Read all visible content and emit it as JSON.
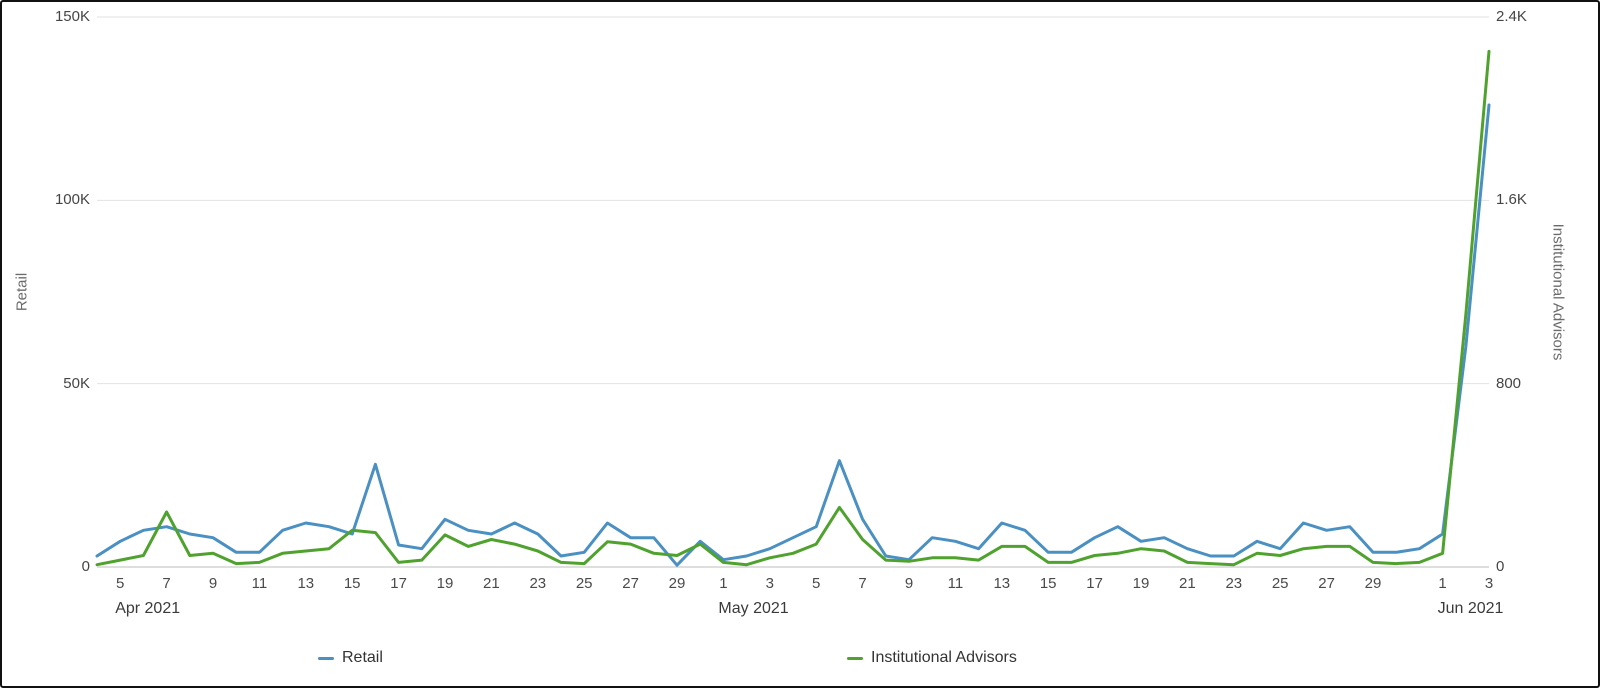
{
  "chart_data": {
    "type": "line",
    "title": "",
    "x_dates": [
      "Apr 4",
      "Apr 5",
      "Apr 6",
      "Apr 7",
      "Apr 8",
      "Apr 9",
      "Apr 10",
      "Apr 11",
      "Apr 12",
      "Apr 13",
      "Apr 14",
      "Apr 15",
      "Apr 16",
      "Apr 17",
      "Apr 18",
      "Apr 19",
      "Apr 20",
      "Apr 21",
      "Apr 22",
      "Apr 23",
      "Apr 24",
      "Apr 25",
      "Apr 26",
      "Apr 27",
      "Apr 28",
      "Apr 29",
      "Apr 30",
      "May 1",
      "May 2",
      "May 3",
      "May 4",
      "May 5",
      "May 6",
      "May 7",
      "May 8",
      "May 9",
      "May 10",
      "May 11",
      "May 12",
      "May 13",
      "May 14",
      "May 15",
      "May 16",
      "May 17",
      "May 18",
      "May 19",
      "May 20",
      "May 21",
      "May 22",
      "May 23",
      "May 24",
      "May 25",
      "May 26",
      "May 27",
      "May 28",
      "May 29",
      "May 30",
      "May 31",
      "Jun 1",
      "Jun 2",
      "Jun 3"
    ],
    "series": [
      {
        "name": "Retail",
        "color": "#4a90c2",
        "axis": "left",
        "values": [
          3000,
          7000,
          10000,
          11000,
          9000,
          8000,
          4000,
          4000,
          10000,
          12000,
          11000,
          9000,
          28000,
          6000,
          5000,
          13000,
          10000,
          9000,
          12000,
          9000,
          3000,
          4000,
          12000,
          8000,
          8000,
          500,
          7000,
          2000,
          3000,
          5000,
          8000,
          11000,
          29000,
          13000,
          3000,
          2000,
          8000,
          7000,
          5000,
          12000,
          10000,
          4000,
          4000,
          8000,
          11000,
          7000,
          8000,
          5000,
          3000,
          3000,
          7000,
          5000,
          12000,
          10000,
          11000,
          4000,
          4000,
          5000,
          9000,
          60000,
          126000
        ]
      },
      {
        "name": "Institutional Advisors",
        "color": "#4fa22e",
        "axis": "right",
        "values": [
          10,
          30,
          50,
          240,
          50,
          60,
          15,
          20,
          60,
          70,
          80,
          160,
          150,
          20,
          30,
          140,
          90,
          120,
          100,
          70,
          20,
          15,
          110,
          100,
          60,
          50,
          100,
          20,
          10,
          40,
          60,
          100,
          260,
          120,
          30,
          25,
          40,
          40,
          30,
          90,
          90,
          20,
          20,
          50,
          60,
          80,
          70,
          20,
          15,
          10,
          60,
          50,
          80,
          90,
          90,
          20,
          15,
          20,
          60,
          1100,
          2250
        ]
      }
    ],
    "left_axis": {
      "title": "Retail",
      "min": 0,
      "max": 150000,
      "ticks": [
        "0",
        "50K",
        "100K",
        "150K"
      ]
    },
    "right_axis": {
      "title": "Institutional Advisors",
      "min": 0,
      "max": 2400,
      "ticks": [
        "0",
        "800",
        "1.6K",
        "2.4K"
      ]
    },
    "x_ticks": [
      {
        "label": "5",
        "day": 1
      },
      {
        "label": "7",
        "day": 3
      },
      {
        "label": "9",
        "day": 5
      },
      {
        "label": "11",
        "day": 7
      },
      {
        "label": "13",
        "day": 9
      },
      {
        "label": "15",
        "day": 11
      },
      {
        "label": "17",
        "day": 13
      },
      {
        "label": "19",
        "day": 15
      },
      {
        "label": "21",
        "day": 17
      },
      {
        "label": "23",
        "day": 19
      },
      {
        "label": "25",
        "day": 21
      },
      {
        "label": "27",
        "day": 23
      },
      {
        "label": "29",
        "day": 25
      },
      {
        "label": "1",
        "day": 27
      },
      {
        "label": "3",
        "day": 29
      },
      {
        "label": "5",
        "day": 31
      },
      {
        "label": "7",
        "day": 33
      },
      {
        "label": "9",
        "day": 35
      },
      {
        "label": "11",
        "day": 37
      },
      {
        "label": "13",
        "day": 39
      },
      {
        "label": "15",
        "day": 41
      },
      {
        "label": "17",
        "day": 43
      },
      {
        "label": "19",
        "day": 45
      },
      {
        "label": "21",
        "day": 47
      },
      {
        "label": "23",
        "day": 49
      },
      {
        "label": "25",
        "day": 51
      },
      {
        "label": "27",
        "day": 53
      },
      {
        "label": "29",
        "day": 55
      },
      {
        "label": "1",
        "day": 58
      },
      {
        "label": "3",
        "day": 60
      }
    ],
    "month_labels": [
      {
        "label": "Apr 2021",
        "day": 1
      },
      {
        "label": "May 2021",
        "day": 27
      },
      {
        "label": "Jun 2021",
        "day": 58
      }
    ],
    "grid": "horizontal",
    "legend_position": "bottom"
  },
  "legend": {
    "items": [
      {
        "label": "Retail",
        "color": "#4a90c2"
      },
      {
        "label": "Institutional Advisors",
        "color": "#4fa22e"
      }
    ]
  },
  "colors": {
    "gridline": "#e2e2e2",
    "axis_line": "#bdbdbd",
    "tick_text": "#4a4a4a",
    "axis_title_text": "#6b6b6b"
  }
}
